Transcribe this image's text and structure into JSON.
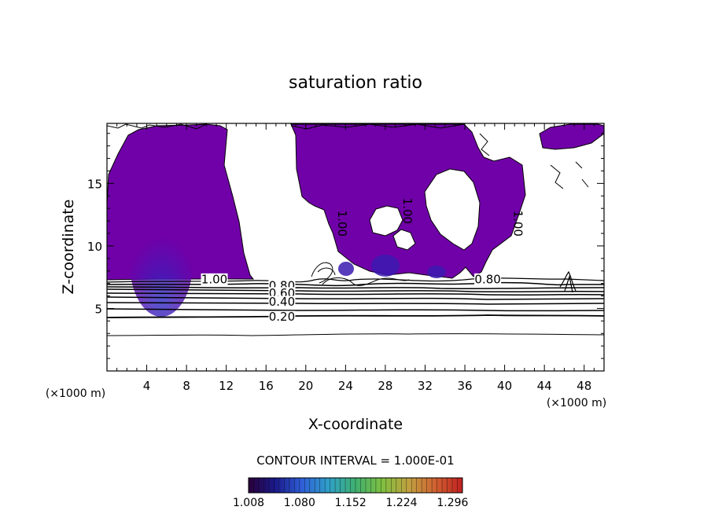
{
  "chart_data": {
    "type": "contour",
    "title": "saturation ratio",
    "xlabel": "X-coordinate",
    "ylabel": "Z-coordinate",
    "x_unit_label": "(×1000 m)",
    "x_unit_label_right": "(×1000 m)",
    "xlim": [
      0,
      50
    ],
    "ylim": [
      0,
      19.8
    ],
    "xticks": [
      4,
      8,
      12,
      16,
      20,
      24,
      28,
      32,
      36,
      40,
      44,
      48
    ],
    "yticks": [
      5,
      10,
      15
    ],
    "contour_interval_text": "CONTOUR INTERVAL = 1.000E-01",
    "contour_labels": [
      {
        "text": "1.00",
        "x": 10.8,
        "z": 7.3,
        "rotate": 0
      },
      {
        "text": "0.80",
        "x": 17.6,
        "z": 6.8,
        "rotate": 0
      },
      {
        "text": "0.60",
        "x": 17.6,
        "z": 6.2,
        "rotate": 0
      },
      {
        "text": "0.40",
        "x": 17.6,
        "z": 5.5,
        "rotate": 0
      },
      {
        "text": "0.20",
        "x": 17.6,
        "z": 4.3,
        "rotate": 0
      },
      {
        "text": "0.80",
        "x": 38.3,
        "z": 7.3,
        "rotate": 0
      },
      {
        "text": "1.00",
        "x": 23.6,
        "z": 11.8,
        "rotate": 90
      },
      {
        "text": "1.00",
        "x": 30.2,
        "z": 12.8,
        "rotate": 90
      },
      {
        "text": "1.00",
        "x": 41.3,
        "z": 11.8,
        "rotate": 90
      }
    ],
    "saturated_regions_z_gt_1": "purple shaded areas above ~7 km in the x ranges 0–15, 18–36 and 37–41",
    "colorbar": {
      "min": 1.008,
      "max": 1.31,
      "tick_labels": [
        "1.008",
        "1.080",
        "1.152",
        "1.224",
        "1.296"
      ],
      "tick_values": [
        1.008,
        1.08,
        1.152,
        1.224,
        1.296
      ],
      "colors": [
        "#2a003a",
        "#1a1a8a",
        "#2f5fd8",
        "#2fa0c8",
        "#3fb070",
        "#7fc040",
        "#c0a040",
        "#d06030",
        "#c02020"
      ]
    },
    "colors": {
      "fill": "#7000a8",
      "fill_dark": "#5a0a98",
      "fill_blue": "#3a1ab0",
      "line": "#000000"
    },
    "grid": false,
    "legend": "colorbar-bottom"
  }
}
